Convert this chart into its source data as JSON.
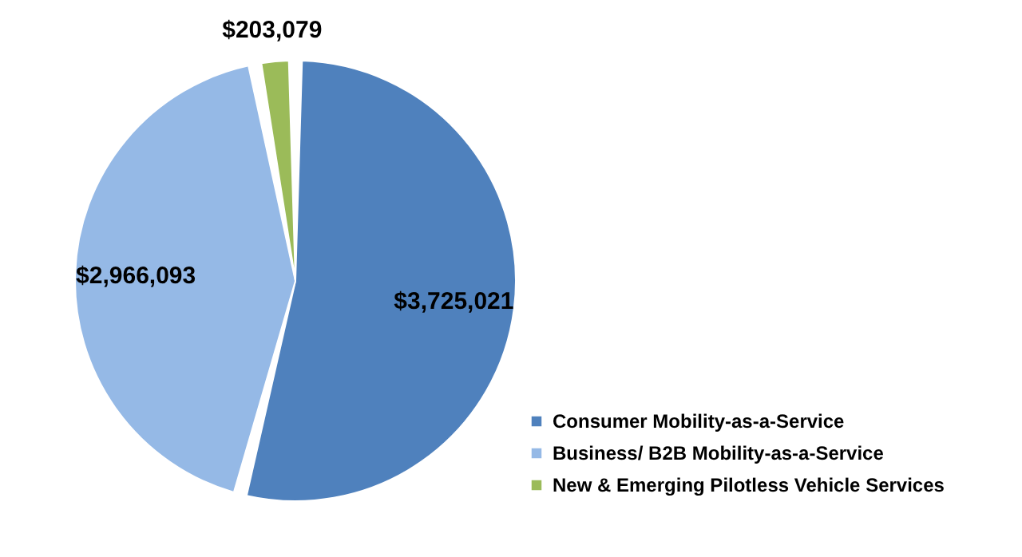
{
  "chart_data": {
    "type": "pie",
    "categories": [
      "Consumer Mobility-as-a-Service",
      "Business/ B2B Mobility-as-a-Service",
      "New & Emerging Pilotless Vehicle Services"
    ],
    "values": [
      3725021,
      2966093,
      203079
    ],
    "colors": [
      "#4f81bd",
      "#95b9e6",
      "#9bbb59"
    ],
    "value_labels": [
      "$3,725,021",
      "$2,966,093",
      "$203,079"
    ],
    "legend": "bottom right"
  }
}
